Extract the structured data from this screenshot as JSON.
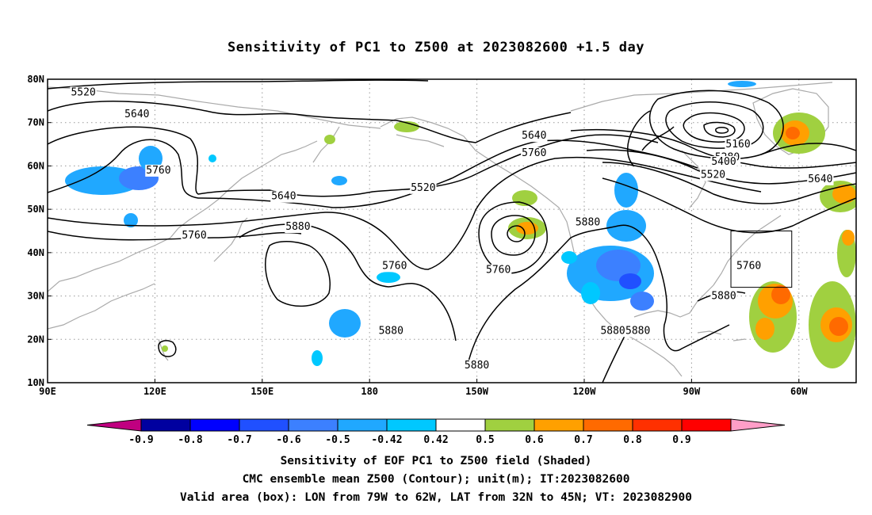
{
  "title": "Sensitivity of PC1 to Z500 at 2023082600 +1.5 day",
  "map": {
    "lon_labels": [
      "90E",
      "120E",
      "150E",
      "180",
      "150W",
      "120W",
      "90W",
      "60W"
    ],
    "lat_labels": [
      "80N",
      "70N",
      "60N",
      "50N",
      "40N",
      "30N",
      "20N",
      "10N"
    ],
    "lon_range": [
      90,
      316
    ],
    "lat_range": [
      10,
      80
    ],
    "grid": "dotted",
    "coastline_color": "#aaaaaa",
    "contour_color": "#000000",
    "contour_labels": [
      {
        "text": "5520",
        "lon": 100,
        "lat": 77
      },
      {
        "text": "5640",
        "lon": 115,
        "lat": 72
      },
      {
        "text": "5760",
        "lon": 121,
        "lat": 59
      },
      {
        "text": "5640",
        "lon": 156,
        "lat": 53
      },
      {
        "text": "5760",
        "lon": 131,
        "lat": 44
      },
      {
        "text": "5880",
        "lon": 160,
        "lat": 46
      },
      {
        "text": "5520",
        "lon": 195,
        "lat": 55
      },
      {
        "text": "5640",
        "lon": 226,
        "lat": 67
      },
      {
        "text": "5760",
        "lon": 226,
        "lat": 63
      },
      {
        "text": "5760",
        "lon": 187,
        "lat": 37
      },
      {
        "text": "5760",
        "lon": 216,
        "lat": 36
      },
      {
        "text": "5880",
        "lon": 186,
        "lat": 22
      },
      {
        "text": "5880",
        "lon": 241,
        "lat": 47
      },
      {
        "text": "5880",
        "lon": 210,
        "lat": 14
      },
      {
        "text": "5880",
        "lon": 248,
        "lat": 22
      },
      {
        "text": "5880",
        "lon": 255,
        "lat": 22
      },
      {
        "text": "5880",
        "lon": 279,
        "lat": 30
      },
      {
        "text": "5160",
        "lon": 283,
        "lat": 65
      },
      {
        "text": "5280",
        "lon": 280,
        "lat": 62
      },
      {
        "text": "5400",
        "lon": 279,
        "lat": 61
      },
      {
        "text": "5520",
        "lon": 276,
        "lat": 58
      },
      {
        "text": "5640",
        "lon": 306,
        "lat": 57
      },
      {
        "text": "5760",
        "lon": 286,
        "lat": 37
      }
    ],
    "valid_box": {
      "lon_min": 281,
      "lon_max": 298,
      "lat_min": 32,
      "lat_max": 45
    }
  },
  "colorbar": {
    "tick_labels": [
      "-0.9",
      "-0.8",
      "-0.7",
      "-0.6",
      "-0.5",
      "-0.42",
      "0.42",
      "0.5",
      "0.6",
      "0.7",
      "0.8",
      "0.9"
    ],
    "colors": [
      "#0000a0",
      "#0000ff",
      "#2050ff",
      "#3c80ff",
      "#20a8ff",
      "#00c8ff",
      "#ffffff",
      "#a0d040",
      "#ffa000",
      "#ff6a00",
      "#ff3000",
      "#ff0000"
    ],
    "low_extend_color": "#c00080",
    "high_extend_color": "#ff9ec8"
  },
  "captions": [
    "Sensitivity of EOF PC1 to Z500 field (Shaded)",
    "CMC ensemble mean Z500 (Contour); unit(m); IT:2023082600",
    "Valid area (box): LON from 79W to 62W, LAT from 32N to 45N; VT: 2023082900"
  ]
}
